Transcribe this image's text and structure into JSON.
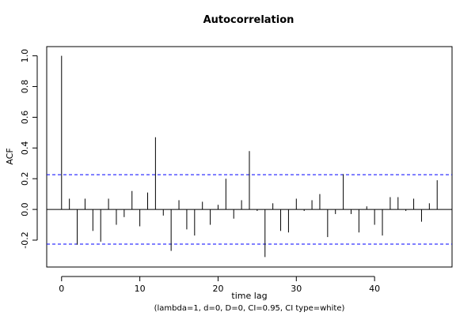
{
  "chart_data": {
    "type": "bar",
    "title": "Autocorrelation",
    "xlabel": "time lag",
    "subtitle": "(lambda=1, d=0, D=0, CI=0.95, CI type=white)",
    "ylabel": "ACF",
    "xlim": [
      -1.9,
      49.9
    ],
    "ylim": [
      -0.375,
      1.06
    ],
    "x_ticks": [
      0,
      10,
      20,
      30,
      40
    ],
    "y_ticks": [
      -0.2,
      0.0,
      0.2,
      0.4,
      0.6,
      0.8,
      1.0
    ],
    "y_tick_labels": [
      "-0.2",
      "0.0",
      "0.2",
      "0.4",
      "0.6",
      "0.8",
      "1.0"
    ],
    "confidence_interval": [
      -0.226,
      0.226
    ],
    "lags": [
      0,
      1,
      2,
      3,
      4,
      5,
      6,
      7,
      8,
      9,
      10,
      11,
      12,
      13,
      14,
      15,
      16,
      17,
      18,
      19,
      20,
      21,
      22,
      23,
      24,
      25,
      26,
      27,
      28,
      29,
      30,
      31,
      32,
      33,
      34,
      35,
      36,
      37,
      38,
      39,
      40,
      41,
      42,
      43,
      44,
      45,
      46,
      47,
      48
    ],
    "values": [
      1.0,
      0.07,
      -0.23,
      0.07,
      -0.14,
      -0.21,
      0.07,
      -0.1,
      -0.05,
      0.12,
      -0.11,
      0.11,
      0.47,
      -0.04,
      -0.27,
      0.06,
      -0.13,
      -0.17,
      0.05,
      -0.1,
      0.03,
      0.2,
      -0.06,
      0.06,
      0.38,
      -0.01,
      -0.31,
      0.04,
      -0.14,
      -0.15,
      0.07,
      -0.01,
      0.06,
      0.1,
      -0.18,
      -0.03,
      0.23,
      -0.03,
      -0.15,
      0.02,
      -0.1,
      -0.17,
      0.08,
      0.08,
      -0.01,
      0.07,
      -0.08,
      0.04,
      0.19
    ],
    "colors": {
      "bars": "#000000",
      "ci_lines": "#0000ff",
      "zero_line": "#000000",
      "box": "#000000"
    }
  }
}
